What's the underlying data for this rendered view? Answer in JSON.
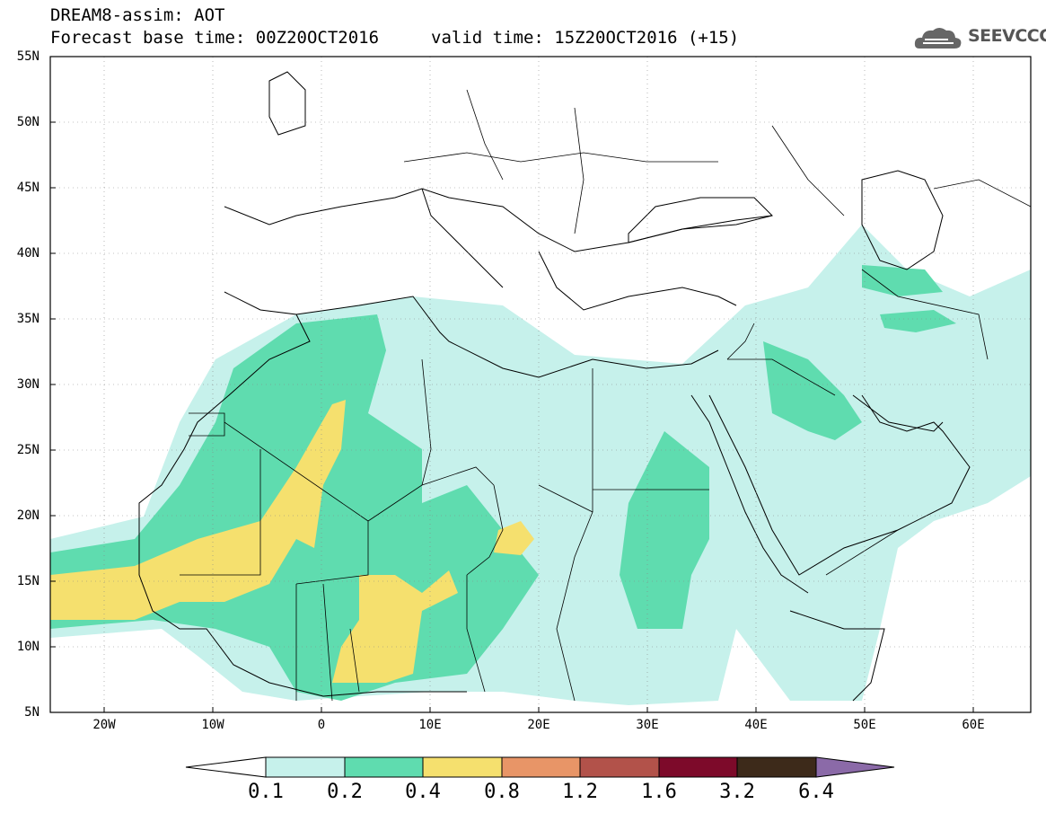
{
  "header": {
    "title_line1": "DREAM8-assim: AOT",
    "title_line2": "Forecast base time: 00Z20OCT2016",
    "valid_time": "valid time: 15Z20OCT2016 (+15)",
    "logo_text": "SEEVCCC"
  },
  "map": {
    "lat_ticks": [
      "55N",
      "50N",
      "45N",
      "40N",
      "35N",
      "30N",
      "25N",
      "20N",
      "15N",
      "10N",
      "5N"
    ],
    "lon_ticks": [
      "20W",
      "10W",
      "0",
      "10E",
      "20E",
      "30E",
      "40E",
      "50E",
      "60E"
    ],
    "extent": {
      "lon_min": -25,
      "lon_max": 65,
      "lat_min": 5,
      "lat_max": 55
    },
    "colors": {
      "border": "#000000",
      "gridline": "#888888"
    }
  },
  "legend": {
    "labels": [
      "0.1",
      "0.2",
      "0.4",
      "0.8",
      "1.2",
      "1.6",
      "3.2",
      "6.4"
    ],
    "colors": [
      "#c6f1eb",
      "#5fdcaf",
      "#f5e06e",
      "#e89567",
      "#b2524a",
      "#7d0a2a",
      "#3d2a1a",
      "#8b6aa8"
    ]
  }
}
